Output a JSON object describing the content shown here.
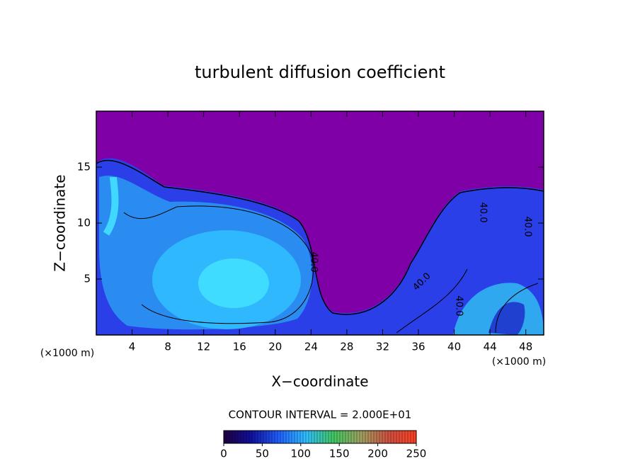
{
  "chart_data": {
    "type": "contour",
    "title": "turbulent diffusion coefficient",
    "xlabel": "X−coordinate",
    "ylabel": "Z−coordinate",
    "axis_unit": "(×1000 m)",
    "xlim": [
      0,
      50
    ],
    "xticks": [
      4,
      8,
      12,
      16,
      20,
      24,
      28,
      32,
      36,
      40,
      44,
      48
    ],
    "ylim": [
      0,
      20
    ],
    "yticks": [
      5,
      10,
      15
    ],
    "contour_interval": "CONTOUR INTERVAL = 2.000E+01",
    "contour_labels": [
      "40.0",
      "40.0",
      "40.0",
      "40.0",
      "40.0"
    ],
    "colorbar": {
      "lim": [
        0,
        250
      ],
      "ticks": [
        0,
        50,
        100,
        150,
        200,
        250
      ],
      "colors": [
        "#200040",
        "#1010a0",
        "#2060ff",
        "#30c0ff",
        "#40c860",
        "#a0a060",
        "#d05040",
        "#ff4020"
      ]
    }
  }
}
